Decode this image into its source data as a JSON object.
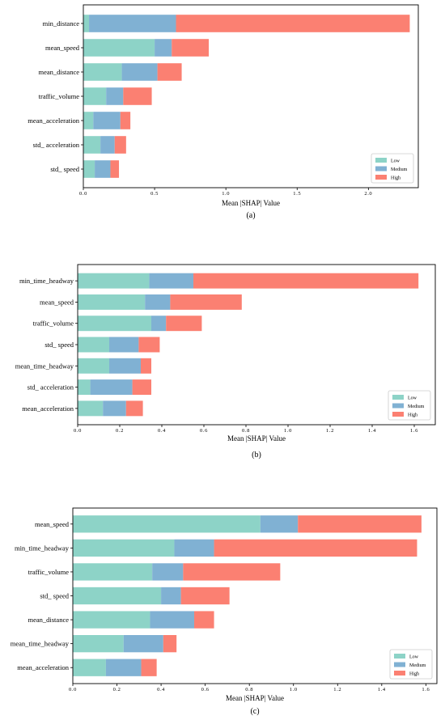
{
  "colors": {
    "low": "#8dd3c7",
    "medium": "#80b1d3",
    "high": "#fb8072"
  },
  "chart_data": [
    {
      "type": "bar",
      "orientation": "horizontal",
      "stacked": true,
      "caption": "(a)",
      "xlabel": "Mean |SHAP| Value",
      "xlim": [
        0,
        2.35
      ],
      "xticks": [
        0.0,
        0.5,
        1.0,
        1.5,
        2.0
      ],
      "xtick_labels": [
        "0.0",
        "0.5",
        "1.0",
        "1.5",
        "2.0"
      ],
      "legend_position": "bottom-right",
      "categories": [
        "min_distance",
        "mean_speed",
        "mean_distance",
        "traffic_volume",
        "mean_acceleration",
        "std_ acceleration",
        "std_ speed"
      ],
      "series": [
        {
          "name": "Low",
          "values": [
            0.04,
            0.5,
            0.27,
            0.16,
            0.07,
            0.12,
            0.08
          ]
        },
        {
          "name": "Medium",
          "values": [
            0.61,
            0.12,
            0.25,
            0.12,
            0.19,
            0.1,
            0.11
          ]
        },
        {
          "name": "High",
          "values": [
            1.64,
            0.26,
            0.17,
            0.2,
            0.07,
            0.08,
            0.06
          ]
        }
      ]
    },
    {
      "type": "bar",
      "orientation": "horizontal",
      "stacked": true,
      "caption": "(b)",
      "xlabel": "Mean |SHAP| Value",
      "xlim": [
        0,
        1.7
      ],
      "xticks": [
        0.0,
        0.2,
        0.4,
        0.6,
        0.8,
        1.0,
        1.2,
        1.4,
        1.6
      ],
      "xtick_labels": [
        "0.0",
        "0.2",
        "0.4",
        "0.6",
        "0.8",
        "1.0",
        "1.2",
        "1.4",
        "1.6"
      ],
      "legend_position": "bottom-right",
      "categories": [
        "min_time_headway",
        "mean_speed",
        "traffic_volume",
        "std_ speed",
        "mean_time_headway",
        "std_ acceleration",
        "mean_acceleration"
      ],
      "series": [
        {
          "name": "Low",
          "values": [
            0.34,
            0.32,
            0.35,
            0.15,
            0.15,
            0.06,
            0.12
          ]
        },
        {
          "name": "Medium",
          "values": [
            0.21,
            0.12,
            0.07,
            0.14,
            0.15,
            0.2,
            0.11
          ]
        },
        {
          "name": "High",
          "values": [
            1.07,
            0.34,
            0.17,
            0.1,
            0.05,
            0.09,
            0.08
          ]
        }
      ]
    },
    {
      "type": "bar",
      "orientation": "horizontal",
      "stacked": true,
      "caption": "(c)",
      "xlabel": "Mean |SHAP| Value",
      "xlim": [
        0,
        1.65
      ],
      "xticks": [
        0.0,
        0.2,
        0.4,
        0.6,
        0.8,
        1.0,
        1.2,
        1.4,
        1.6
      ],
      "xtick_labels": [
        "0.0",
        "0.2",
        "0.4",
        "0.6",
        "0.8",
        "1.0",
        "1.2",
        "1.4",
        "1.6"
      ],
      "legend_position": "bottom-right",
      "categories": [
        "mean_speed",
        "min_time_headway",
        "traffic_volume",
        "std_ speed",
        "mean_distance",
        "mean_time_headway",
        "mean_acceleration"
      ],
      "series": [
        {
          "name": "Low",
          "values": [
            0.85,
            0.46,
            0.36,
            0.4,
            0.35,
            0.23,
            0.15
          ]
        },
        {
          "name": "Medium",
          "values": [
            0.17,
            0.18,
            0.14,
            0.09,
            0.2,
            0.18,
            0.16
          ]
        },
        {
          "name": "High",
          "values": [
            0.56,
            0.92,
            0.44,
            0.22,
            0.09,
            0.06,
            0.07
          ]
        }
      ]
    }
  ]
}
